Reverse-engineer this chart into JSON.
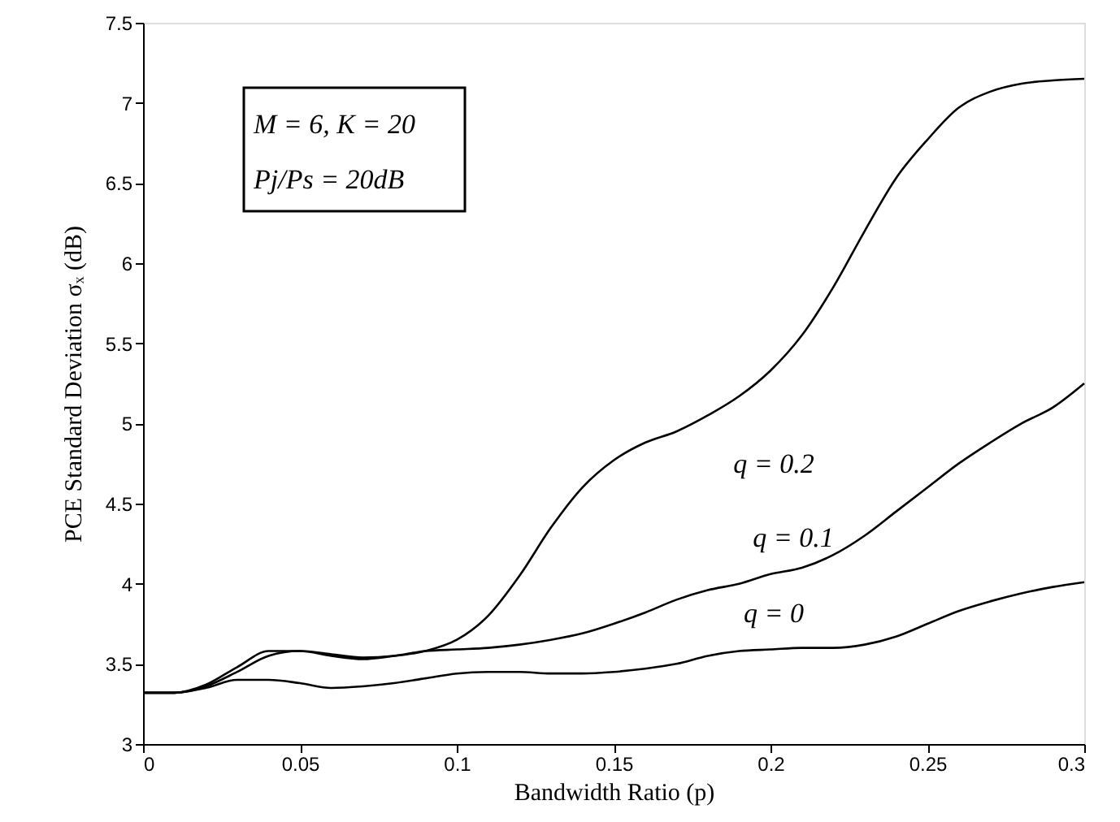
{
  "chart_data": {
    "type": "line",
    "xlabel": "Bandwidth Ratio (p)",
    "ylabel": "PCE Standard Deviation  σₓ (dB)",
    "x": [
      0,
      0.01,
      0.02,
      0.03,
      0.04,
      0.05,
      0.06,
      0.07,
      0.08,
      0.09,
      0.1,
      0.11,
      0.12,
      0.13,
      0.14,
      0.15,
      0.16,
      0.17,
      0.18,
      0.19,
      0.2,
      0.21,
      0.22,
      0.23,
      0.24,
      0.25,
      0.26,
      0.27,
      0.28,
      0.29,
      0.3
    ],
    "series": [
      {
        "name": "q = 0.2",
        "color": "#000000",
        "values": [
          3.32,
          3.32,
          3.37,
          3.48,
          3.58,
          3.58,
          3.56,
          3.54,
          3.55,
          3.58,
          3.65,
          3.8,
          4.05,
          4.35,
          4.6,
          4.77,
          4.88,
          4.95,
          5.05,
          5.17,
          5.33,
          5.55,
          5.85,
          6.2,
          6.53,
          6.77,
          6.97,
          7.07,
          7.12,
          7.14,
          7.15
        ]
      },
      {
        "name": "q = 0.1",
        "color": "#000000",
        "values": [
          3.32,
          3.32,
          3.36,
          3.45,
          3.55,
          3.58,
          3.55,
          3.53,
          3.55,
          3.58,
          3.59,
          3.6,
          3.62,
          3.65,
          3.69,
          3.75,
          3.82,
          3.9,
          3.96,
          4.0,
          4.06,
          4.1,
          4.18,
          4.3,
          4.45,
          4.6,
          4.75,
          4.88,
          5.0,
          5.1,
          5.25
        ]
      },
      {
        "name": "q = 0",
        "color": "#000000",
        "values": [
          3.32,
          3.32,
          3.35,
          3.4,
          3.4,
          3.38,
          3.35,
          3.36,
          3.38,
          3.41,
          3.44,
          3.45,
          3.45,
          3.44,
          3.44,
          3.45,
          3.47,
          3.5,
          3.55,
          3.58,
          3.59,
          3.6,
          3.6,
          3.62,
          3.67,
          3.75,
          3.83,
          3.89,
          3.94,
          3.98,
          4.01
        ]
      }
    ],
    "xlim": [
      0,
      0.3
    ],
    "xticks": [
      0,
      0.05,
      0.1,
      0.15,
      0.2,
      0.25,
      0.3
    ],
    "ylim": [
      3,
      7.5
    ],
    "yticks": [
      3,
      3.5,
      4,
      4.5,
      5,
      5.5,
      6,
      6.5,
      7,
      7.5
    ],
    "grid": false,
    "annotations": [
      "M = 6, K = 20",
      "Pj/Ps = 20dB"
    ]
  }
}
